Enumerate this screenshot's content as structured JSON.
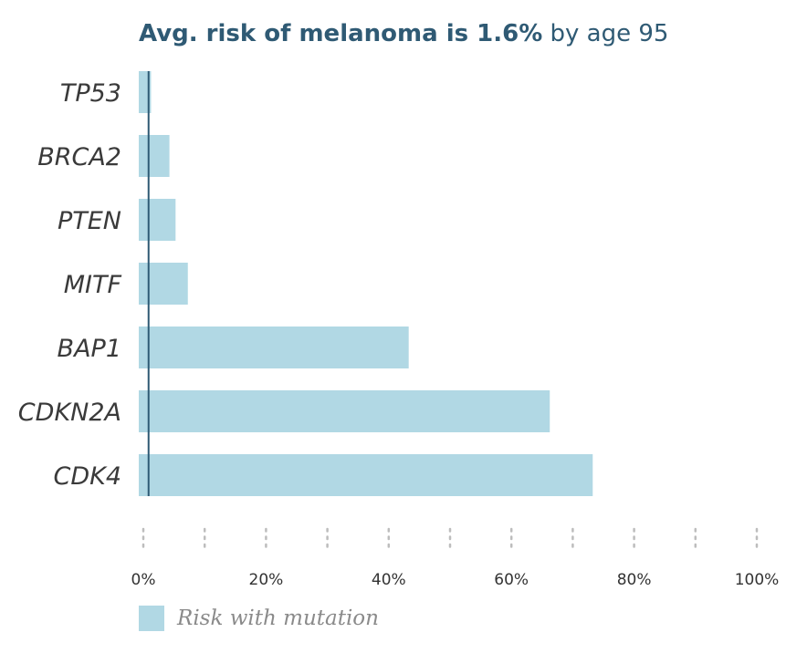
{
  "title": {
    "bold": "Avg. risk of melanoma is 1.6%",
    "rest": " by age 95"
  },
  "colors": {
    "bar": "#b1d8e4",
    "average_line": "#2f5a74",
    "title": "#2f5a74"
  },
  "chart_data": {
    "type": "bar",
    "orientation": "horizontal",
    "categories": [
      "TP53",
      "BRCA2",
      "PTEN",
      "MITF",
      "BAP1",
      "CDKN2A",
      "CDK4"
    ],
    "series": [
      {
        "name": "Risk with mutation",
        "values": [
          2,
          5,
          6,
          8,
          44,
          67,
          74
        ]
      }
    ],
    "average_line": 1.6,
    "xlim": [
      0,
      100
    ],
    "xticks": [
      "0%",
      "20%",
      "40%",
      "60%",
      "80%",
      "100%"
    ],
    "xtick_values": [
      0,
      20,
      40,
      60,
      80,
      100
    ],
    "grid_values": [
      0,
      10,
      20,
      30,
      40,
      50,
      60,
      70,
      80,
      90,
      100
    ],
    "legend_position": "bottom-left"
  },
  "legend": {
    "label": "Risk with mutation"
  }
}
